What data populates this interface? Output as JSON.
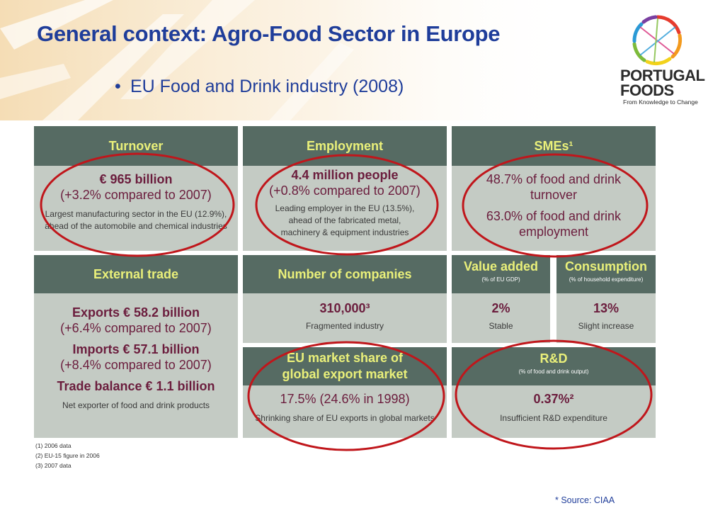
{
  "slide": {
    "title": "General context: Agro-Food Sector in Europe",
    "bullet": "EU Food and Drink industry (2008)",
    "source": "* Source: CIAA"
  },
  "logo": {
    "name_line1": "PORTUGAL",
    "name_line2": "FOODS",
    "tagline": "From Knowledge to Change"
  },
  "panels": {
    "turnover": {
      "title": "Turnover",
      "value": "€ 965 billion",
      "change": "(+3.2% compared to 2007)",
      "note1": "Largest manufacturing sector in the EU (12.9%),",
      "note2": "ahead of the automobile and chemical industries"
    },
    "employment": {
      "title": "Employment",
      "value": "4.4 million people",
      "change": "(+0.8% compared to 2007)",
      "note1": "Leading employer in the EU (13.5%),",
      "note2": "ahead of the fabricated metal,",
      "note3": "machinery & equipment industries"
    },
    "smes": {
      "title": "SMEs¹",
      "line1a": "48.7% of food and drink",
      "line1b": "turnover",
      "line2a": "63.0% of food and drink",
      "line2b": "employment"
    },
    "external_trade": {
      "title": "External trade",
      "exports": "Exports € 58.2 billion",
      "exports_change": "(+6.4% compared to 2007)",
      "imports": "Imports € 57.1 billion",
      "imports_change": "(+8.4% compared to 2007)",
      "balance": "Trade balance € 1.1 billion",
      "note": "Net exporter of food and drink products"
    },
    "companies": {
      "title": "Number of companies",
      "value": "310,000³",
      "note": "Fragmented industry"
    },
    "value_added": {
      "title": "Value added",
      "subtitle": "(% of EU GDP)",
      "value": "2%",
      "note": "Stable"
    },
    "consumption": {
      "title": "Consumption",
      "subtitle": "(% of household expenditure)",
      "value": "13%",
      "note": "Slight increase"
    },
    "market_share": {
      "title1": "EU market share of",
      "title2": "global export market",
      "value": "17.5% (24.6% in 1998)",
      "note": "Shrinking share of EU exports in global markets"
    },
    "rnd": {
      "title": "R&D",
      "subtitle": "(% of food and drink output)",
      "value": "0.37%²",
      "note": "Insufficient R&D expenditure"
    }
  },
  "footnotes": {
    "f1": "(1) 2006 data",
    "f2": "(2) EU-15 figure in 2006",
    "f3": "(3) 2007 data"
  },
  "colors": {
    "title_blue": "#1f3d9a",
    "header_green": "#566b63",
    "header_text": "#eaf07a",
    "panel_bg": "#c4cbc4",
    "value_text": "#6b1d3d",
    "highlight_circle": "#c0161b"
  }
}
